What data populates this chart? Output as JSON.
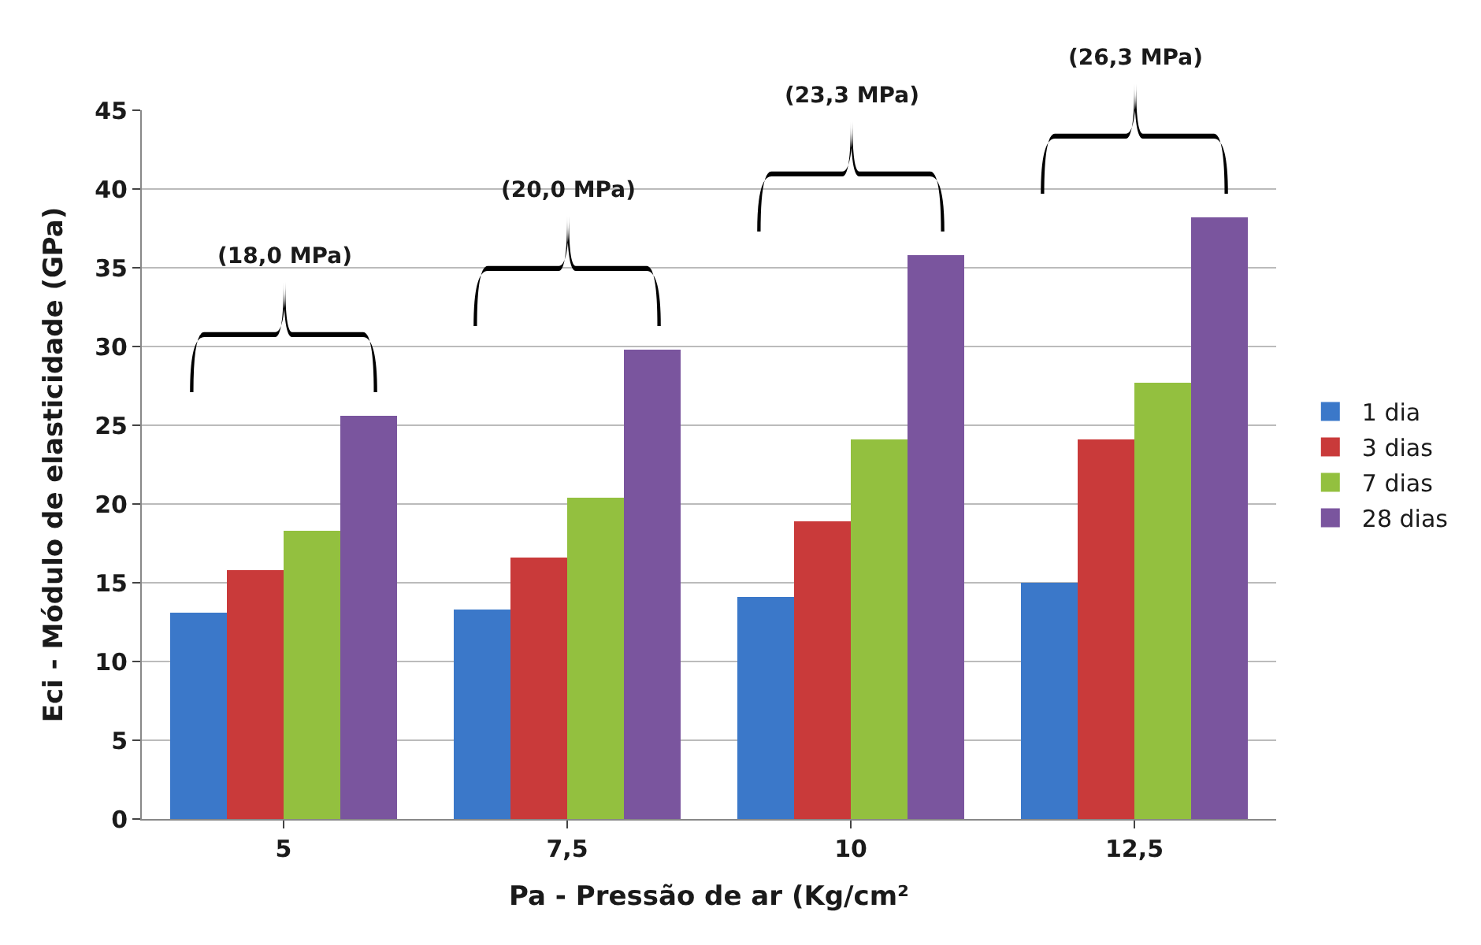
{
  "chart_data": {
    "type": "bar",
    "categories": [
      "5",
      "7,5",
      "10",
      "12,5"
    ],
    "series": [
      {
        "name": "1 dia",
        "color": "#3b78c9",
        "values": [
          13.1,
          13.3,
          14.1,
          15.0
        ]
      },
      {
        "name": "3 dias",
        "color": "#c93a3a",
        "values": [
          15.8,
          16.6,
          18.9,
          24.1
        ]
      },
      {
        "name": "7 dias",
        "color": "#93c03f",
        "values": [
          18.3,
          20.4,
          24.1,
          27.7
        ]
      },
      {
        "name": "28 dias",
        "color": "#7a559e",
        "values": [
          25.6,
          29.8,
          35.8,
          38.2
        ]
      }
    ],
    "xlabel": "Pa - Pressão de ar (Kg/cm²",
    "ylabel": "Eci - Módulo de elasticidade (GPa)",
    "ylim": [
      0,
      45
    ],
    "yticks": [
      0,
      5,
      10,
      15,
      20,
      25,
      30,
      35,
      40,
      45
    ],
    "grid": "y",
    "legend": "right",
    "annotations": [
      "(18,0 MPa)",
      "(20,0 MPa)",
      "(23,3 MPa)",
      "(26,3 MPa)"
    ]
  }
}
